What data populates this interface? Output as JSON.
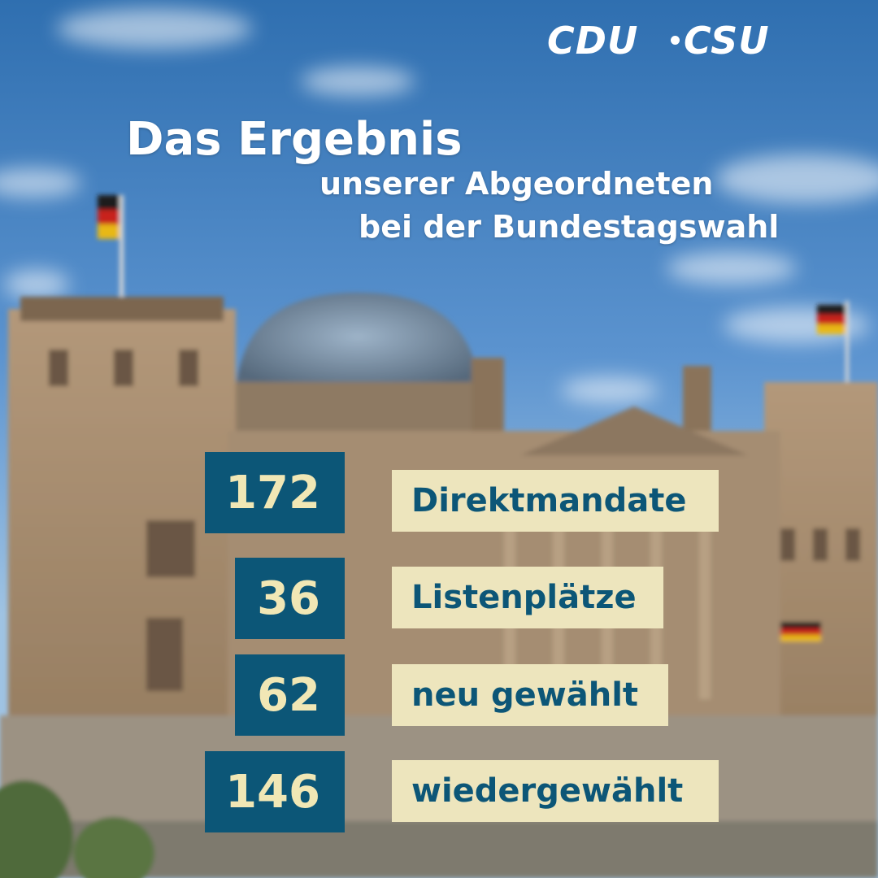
{
  "logo": {
    "left": "CDU",
    "right": "CSU"
  },
  "headline": {
    "title": "Das Ergebnis",
    "line2": "unserer Abgeordneten",
    "line3": "bei der Bundestagswahl"
  },
  "stats": [
    {
      "value": "172",
      "label": "Direktmandate"
    },
    {
      "value": "36",
      "label": "Listenplätze"
    },
    {
      "value": "62",
      "label": "neu gewählt"
    },
    {
      "value": "146",
      "label": "wiedergewählt"
    }
  ],
  "colors": {
    "number_box": "#0c5677",
    "number_text": "#f1e7b5",
    "label_box": "#ede5bd",
    "label_text": "#0c5677"
  }
}
